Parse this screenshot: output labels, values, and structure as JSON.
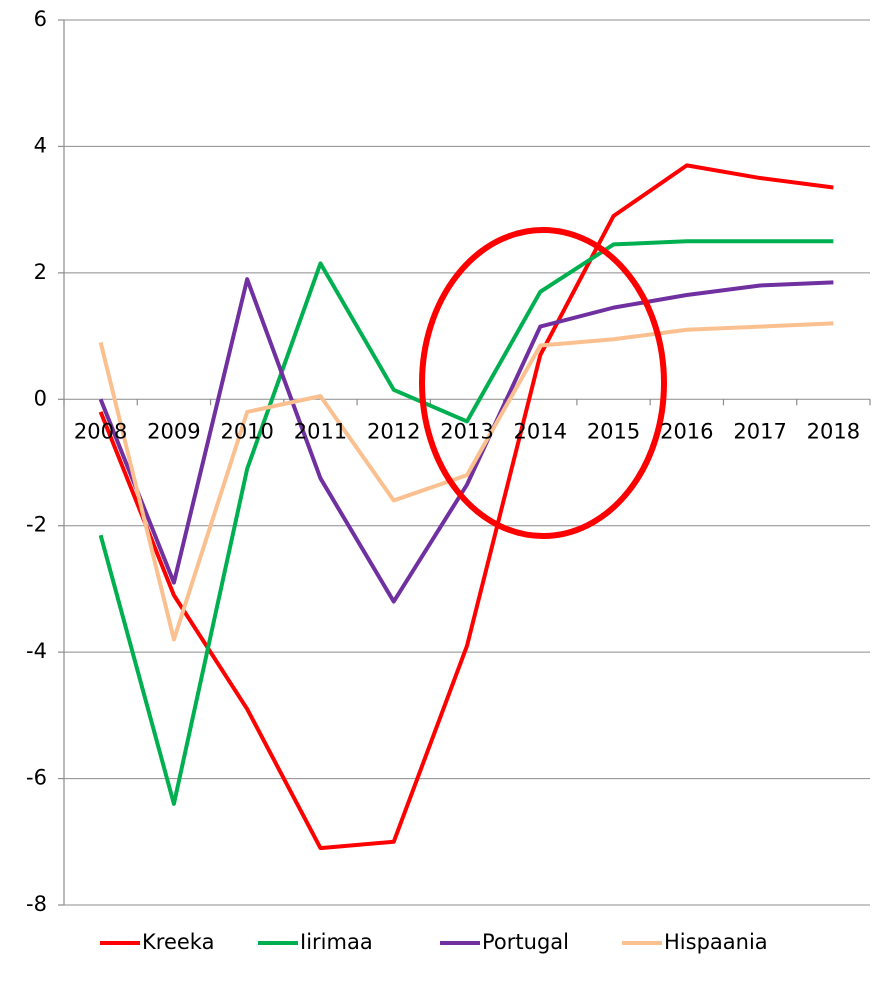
{
  "chart_data": {
    "type": "line",
    "categories": [
      "2008",
      "2009",
      "2010",
      "2011",
      "2012",
      "2013",
      "2014",
      "2015",
      "2016",
      "2017",
      "2018"
    ],
    "series": [
      {
        "name": "Kreeka",
        "color": "#ff0000",
        "values": [
          -0.2,
          -3.1,
          -4.9,
          -7.1,
          -7.0,
          -3.9,
          0.7,
          2.9,
          3.7,
          3.5,
          3.35
        ]
      },
      {
        "name": "Iirimaa",
        "color": "#00b050",
        "values": [
          -2.15,
          -6.4,
          -1.1,
          2.15,
          0.15,
          -0.35,
          1.7,
          2.45,
          2.5,
          2.5,
          2.5
        ]
      },
      {
        "name": "Portugal",
        "color": "#7030a0",
        "values": [
          0.0,
          -2.9,
          1.9,
          -1.25,
          -3.2,
          -1.35,
          1.15,
          1.45,
          1.65,
          1.8,
          1.85
        ]
      },
      {
        "name": "Hispaania",
        "color": "#fac090",
        "values": [
          0.9,
          -3.8,
          -0.2,
          0.05,
          -1.6,
          -1.2,
          0.85,
          0.95,
          1.1,
          1.15,
          1.2
        ]
      }
    ],
    "ylim": [
      -8,
      6
    ],
    "yticks": [
      -8,
      -6,
      -4,
      -2,
      0,
      2,
      4,
      6
    ],
    "grid": true,
    "legend": "bottom"
  }
}
